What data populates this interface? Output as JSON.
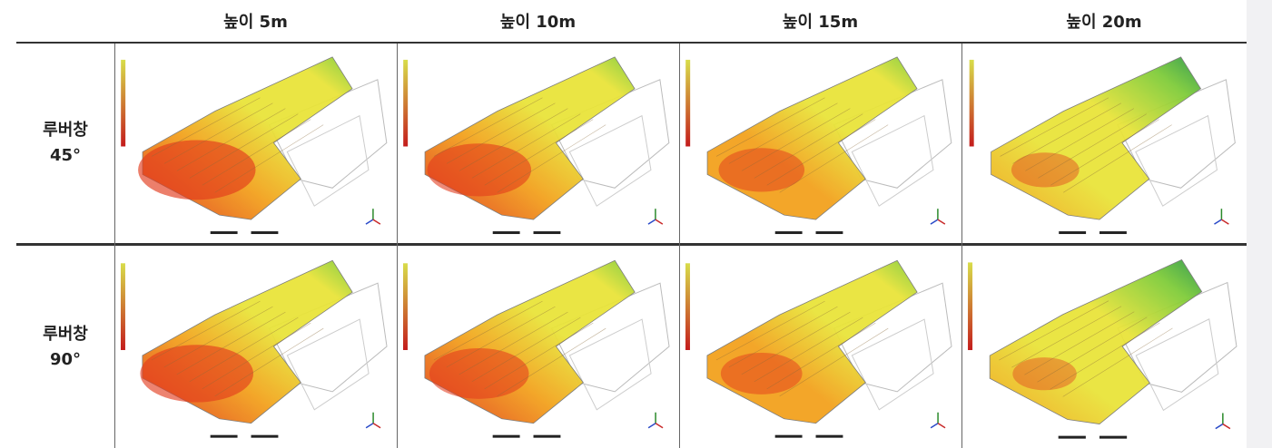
{
  "columns": [
    "높이 5m",
    "높이 10m",
    "높이 15m",
    "높이 20m"
  ],
  "rows": [
    {
      "title": "루버창",
      "angle": "45°"
    },
    {
      "title": "루버창",
      "angle": "90°"
    }
  ],
  "plot_intensity": [
    [
      1.0,
      0.85,
      0.65,
      0.45
    ],
    [
      0.95,
      0.8,
      0.6,
      0.4
    ]
  ],
  "colors": {
    "hot": "#e23a1c",
    "warm": "#f3a21e",
    "mid": "#e9e43a",
    "cool": "#7fcc3a",
    "cold": "#2e9a4a"
  }
}
